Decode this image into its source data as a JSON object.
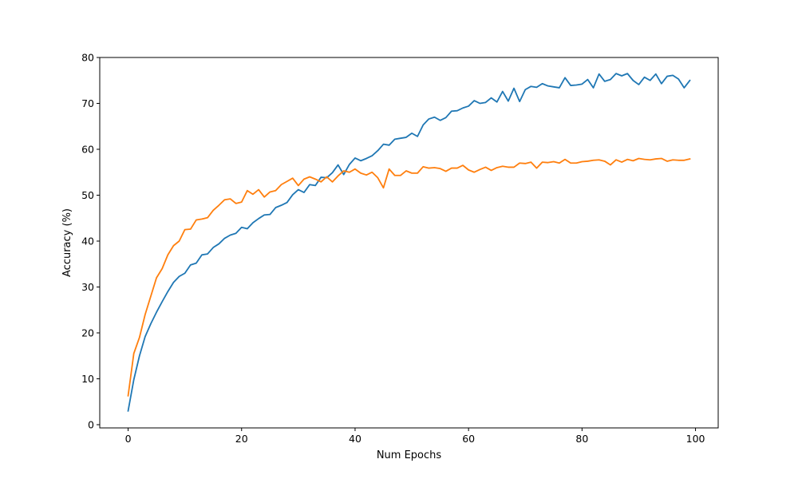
{
  "chart_data": {
    "type": "line",
    "title": "",
    "xlabel": "Num Epochs",
    "ylabel": "Accuracy (%)",
    "xlim": [
      -5,
      104
    ],
    "ylim": [
      -0.7,
      80
    ],
    "xticks": [
      0,
      20,
      40,
      60,
      80,
      100
    ],
    "yticks": [
      0,
      10,
      20,
      30,
      40,
      50,
      60,
      70,
      80
    ],
    "grid": false,
    "legend": "none",
    "x": [
      0,
      1,
      2,
      3,
      4,
      5,
      6,
      7,
      8,
      9,
      10,
      11,
      12,
      13,
      14,
      15,
      16,
      17,
      18,
      19,
      20,
      21,
      22,
      23,
      24,
      25,
      26,
      27,
      28,
      29,
      30,
      31,
      32,
      33,
      34,
      35,
      36,
      37,
      38,
      39,
      40,
      41,
      42,
      43,
      44,
      45,
      46,
      47,
      48,
      49,
      50,
      51,
      52,
      53,
      54,
      55,
      56,
      57,
      58,
      59,
      60,
      61,
      62,
      63,
      64,
      65,
      66,
      67,
      68,
      69,
      70,
      71,
      72,
      73,
      74,
      75,
      76,
      77,
      78,
      79,
      80,
      81,
      82,
      83,
      84,
      85,
      86,
      87,
      88,
      89,
      90,
      91,
      92,
      93,
      94,
      95,
      96,
      97,
      98,
      99
    ],
    "series": [
      {
        "color": "#1f77b4",
        "values": [
          3.0,
          9.8,
          15.0,
          19.2,
          22.0,
          24.5,
          26.8,
          29.0,
          31.0,
          32.3,
          33.0,
          34.8,
          35.2,
          37.0,
          37.2,
          38.6,
          39.4,
          40.6,
          41.3,
          41.7,
          43.0,
          42.7,
          44.0,
          44.9,
          45.7,
          45.8,
          47.3,
          47.8,
          48.4,
          50.1,
          51.2,
          50.6,
          52.3,
          52.1,
          53.9,
          53.8,
          54.9,
          56.6,
          54.5,
          56.7,
          58.1,
          57.5,
          58.0,
          58.6,
          59.7,
          61.1,
          60.9,
          62.2,
          62.4,
          62.6,
          63.5,
          62.8,
          65.3,
          66.6,
          67.0,
          66.3,
          66.9,
          68.3,
          68.4,
          69.0,
          69.4,
          70.6,
          70.0,
          70.2,
          71.2,
          70.3,
          72.6,
          70.5,
          73.3,
          70.4,
          73.0,
          73.7,
          73.5,
          74.3,
          73.8,
          73.6,
          73.4,
          75.6,
          73.9,
          74.0,
          74.2,
          75.2,
          73.4,
          76.4,
          74.8,
          75.2,
          76.5,
          76.0,
          76.5,
          75.0,
          74.1,
          75.7,
          75.0,
          76.4,
          74.3,
          75.9,
          76.1,
          75.3,
          73.4,
          75.0
        ]
      },
      {
        "color": "#ff7f0e",
        "values": [
          6.3,
          15.5,
          19.0,
          24.0,
          28.0,
          32.0,
          34.0,
          37.0,
          39.0,
          40.0,
          42.5,
          42.6,
          44.6,
          44.8,
          45.1,
          46.7,
          47.8,
          49.0,
          49.2,
          48.2,
          48.5,
          51.0,
          50.2,
          51.2,
          49.6,
          50.7,
          51.0,
          52.3,
          53.0,
          53.7,
          52.1,
          53.5,
          54.0,
          53.5,
          52.9,
          54.0,
          52.9,
          54.2,
          55.3,
          55.0,
          55.7,
          54.8,
          54.4,
          55.0,
          53.8,
          51.6,
          55.7,
          54.3,
          54.3,
          55.3,
          54.8,
          54.8,
          56.2,
          55.9,
          56.0,
          55.8,
          55.2,
          55.9,
          55.9,
          56.5,
          55.5,
          55.0,
          55.6,
          56.1,
          55.4,
          56.0,
          56.3,
          56.1,
          56.1,
          57.0,
          56.9,
          57.2,
          55.9,
          57.2,
          57.1,
          57.3,
          57.0,
          57.8,
          57.0,
          57.0,
          57.3,
          57.4,
          57.6,
          57.7,
          57.4,
          56.6,
          57.7,
          57.2,
          57.8,
          57.5,
          58.0,
          57.8,
          57.7,
          57.9,
          58.0,
          57.4,
          57.7,
          57.6,
          57.6,
          57.9
        ]
      }
    ]
  }
}
